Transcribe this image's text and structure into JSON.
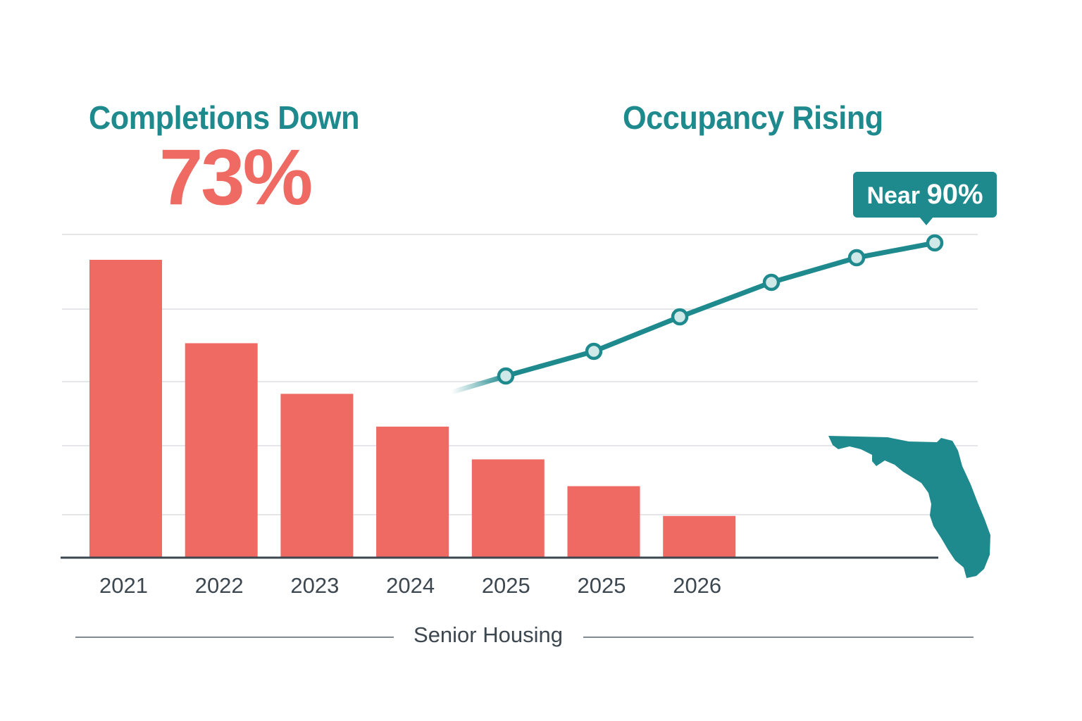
{
  "titles": {
    "completions": "Completions Down",
    "completions_change": "73%",
    "occupancy": "Occupancy Rising",
    "callout_prefix": "Near",
    "callout_value": "90%",
    "footer": "Senior Housing"
  },
  "colors": {
    "bars": "#ee6a63",
    "line": "#1f8a8e",
    "marker_fill": "#cfe8e8",
    "map": "#1f8a8e",
    "grid": "#d4d8dc",
    "axis": "#3d4750",
    "tick_text": "#3d4750"
  },
  "icons": {
    "map": "florida-map-icon"
  },
  "chart_data": [
    {
      "type": "bar",
      "categories": [
        "2021",
        "2022",
        "2023",
        "2024",
        "2025",
        "2025",
        "2026"
      ],
      "values": [
        100,
        72,
        55,
        44,
        33,
        24,
        14
      ],
      "ylim": [
        0,
        110
      ],
      "grid": true
    },
    {
      "type": "line",
      "values": [
        60,
        65,
        72,
        79,
        84,
        87
      ],
      "ylim": [
        50,
        90
      ],
      "markers": true,
      "annotation": "Near 90%"
    }
  ]
}
